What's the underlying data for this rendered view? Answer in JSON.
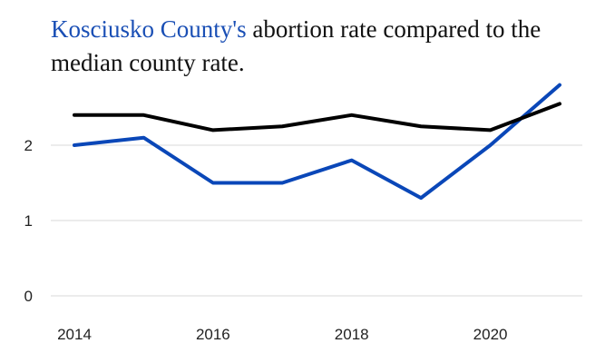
{
  "title": {
    "highlight": "Kosciusko County's",
    "rest": " abortion rate compared to the median county rate."
  },
  "chart_data": {
    "type": "line",
    "x": [
      2014,
      2015,
      2016,
      2017,
      2018,
      2019,
      2020,
      2021
    ],
    "series": [
      {
        "color": "#0a47b8",
        "values": [
          2.0,
          2.1,
          1.5,
          1.5,
          1.8,
          1.3,
          2.0,
          2.8
        ]
      },
      {
        "color": "#000000",
        "values": [
          2.4,
          2.4,
          2.2,
          2.25,
          2.4,
          2.25,
          2.2,
          2.55
        ]
      }
    ],
    "x_ticks": [
      "2014",
      "2016",
      "2018",
      "2020"
    ],
    "y_ticks": [
      "0",
      "1",
      "2"
    ],
    "xlim": [
      2014,
      2021
    ],
    "ylim": [
      0,
      2.8
    ],
    "grid": true,
    "colors": {
      "grid": "#d9d9d9",
      "highlight": "#1a4fb5"
    }
  }
}
